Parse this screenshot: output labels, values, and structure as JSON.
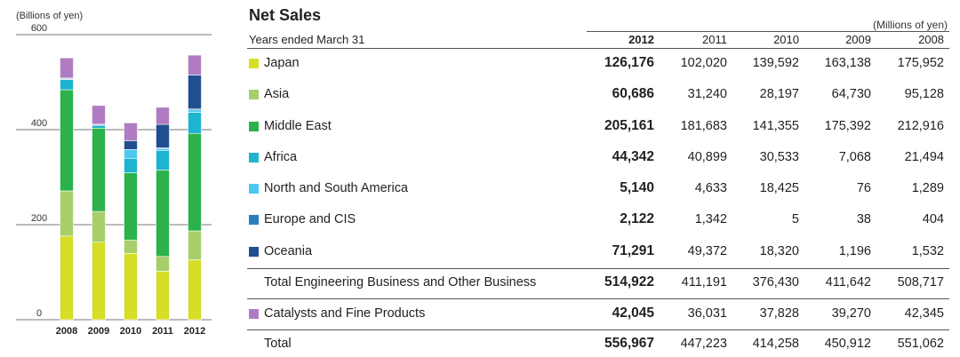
{
  "chart_data": {
    "type": "bar",
    "stacked": true,
    "unit_label": "(Billions of yen)",
    "categories": [
      "2008",
      "2009",
      "2010",
      "2011",
      "2012"
    ],
    "ylim": [
      0,
      600
    ],
    "yticks": [
      "600",
      "400",
      "200",
      "0"
    ],
    "grid": true,
    "series": [
      {
        "name": "Japan",
        "color": "#d4df26",
        "values": [
          176.0,
          163.1,
          139.6,
          102.0,
          126.2
        ]
      },
      {
        "name": "Asia",
        "color": "#a6cf6a",
        "values": [
          95.1,
          64.7,
          28.2,
          31.2,
          60.7
        ]
      },
      {
        "name": "Middle East",
        "color": "#2bb24c",
        "values": [
          212.9,
          175.4,
          141.4,
          181.7,
          205.2
        ]
      },
      {
        "name": "Africa",
        "color": "#1eb3cf",
        "values": [
          21.5,
          7.1,
          30.5,
          40.9,
          44.3
        ]
      },
      {
        "name": "North and South America",
        "color": "#4cc8f0",
        "values": [
          1.3,
          0.1,
          18.4,
          4.6,
          5.1
        ]
      },
      {
        "name": "Europe and CIS",
        "color": "#2a7fc1",
        "values": [
          0.4,
          0.0,
          0.0,
          1.3,
          2.1
        ]
      },
      {
        "name": "Oceania",
        "color": "#1f4f8f",
        "values": [
          1.5,
          1.2,
          18.3,
          49.4,
          71.3
        ]
      },
      {
        "name": "Catalysts and Fine Products",
        "color": "#b07cc1",
        "values": [
          42.3,
          39.3,
          37.8,
          36.0,
          42.0
        ]
      }
    ]
  },
  "table": {
    "title": "Net Sales",
    "unit": "(Millions of yen)",
    "header_label": "Years ended March 31",
    "years": [
      "2012",
      "2011",
      "2010",
      "2009",
      "2008"
    ],
    "rows": [
      {
        "label": "Japan",
        "color": "#d4df26",
        "values": [
          "126,176",
          "102,020",
          "139,592",
          "163,138",
          "175,952"
        ]
      },
      {
        "label": "Asia",
        "color": "#a6cf6a",
        "values": [
          "60,686",
          "31,240",
          "28,197",
          "64,730",
          "95,128"
        ]
      },
      {
        "label": "Middle East",
        "color": "#2bb24c",
        "values": [
          "205,161",
          "181,683",
          "141,355",
          "175,392",
          "212,916"
        ]
      },
      {
        "label": "Africa",
        "color": "#1eb3cf",
        "values": [
          "44,342",
          "40,899",
          "30,533",
          "7,068",
          "21,494"
        ]
      },
      {
        "label": "North and South America",
        "color": "#4cc8f0",
        "values": [
          "5,140",
          "4,633",
          "18,425",
          "76",
          "1,289"
        ]
      },
      {
        "label": "Europe and CIS",
        "color": "#2a7fc1",
        "values": [
          "2,122",
          "1,342",
          "5",
          "38",
          "404"
        ]
      },
      {
        "label": "Oceania",
        "color": "#1f4f8f",
        "values": [
          "71,291",
          "49,372",
          "18,320",
          "1,196",
          "1,532"
        ]
      },
      {
        "label": "Total Engineering Business and Other Business",
        "color": "",
        "values": [
          "514,922",
          "411,191",
          "376,430",
          "411,642",
          "508,717"
        ]
      },
      {
        "label": "Catalysts and Fine Products",
        "color": "#b07cc1",
        "values": [
          "42,045",
          "36,031",
          "37,828",
          "39,270",
          "42,345"
        ]
      },
      {
        "label": "Total",
        "color": "",
        "values": [
          "556,967",
          "447,223",
          "414,258",
          "450,912",
          "551,062"
        ]
      }
    ]
  }
}
